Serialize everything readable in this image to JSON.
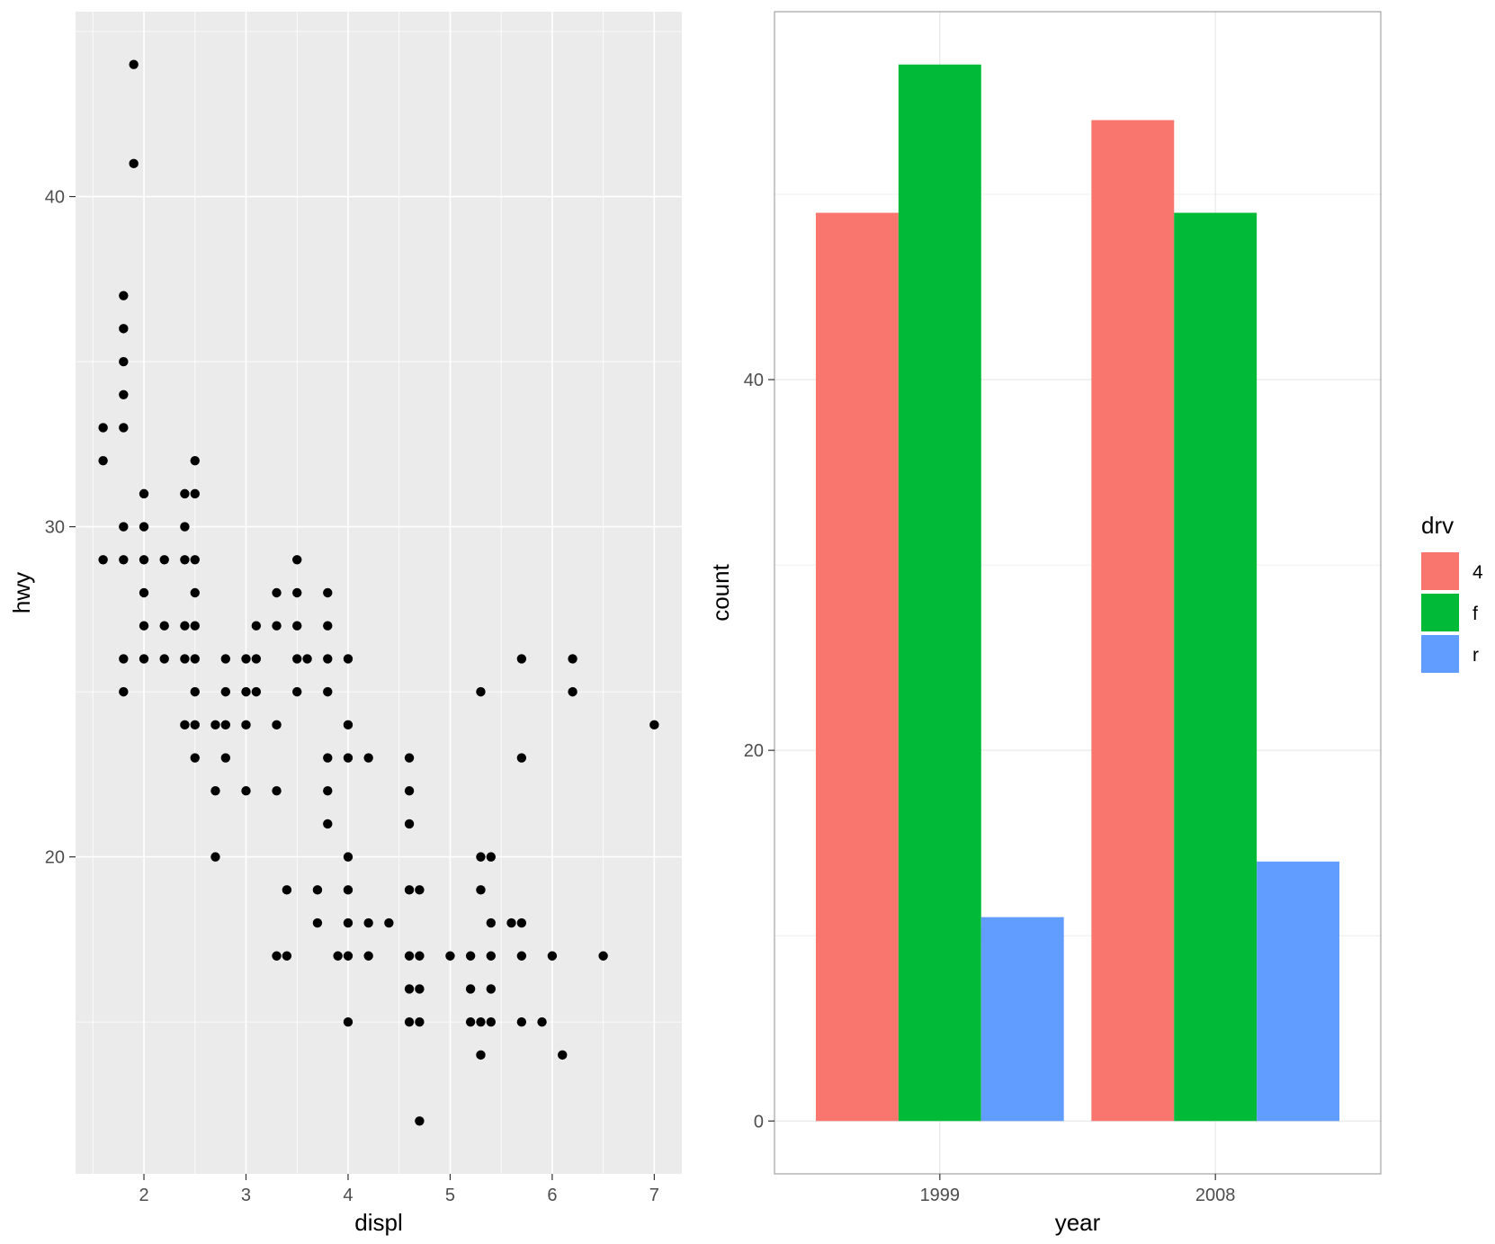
{
  "chart_data": [
    {
      "type": "scatter",
      "title": "",
      "xlabel": "displ",
      "ylabel": "hwy",
      "xlim": [
        1.33,
        7.27
      ],
      "ylim": [
        10.4,
        45.6
      ],
      "xticks": [
        2,
        3,
        4,
        5,
        6,
        7
      ],
      "yticks": [
        20,
        30,
        40
      ],
      "x_tick_labels": [
        "2",
        "3",
        "4",
        "5",
        "6",
        "7"
      ],
      "y_tick_labels": [
        "20",
        "30",
        "40"
      ],
      "grid": true,
      "theme": "grey",
      "points": [
        [
          1.9,
          44
        ],
        [
          1.9,
          41
        ],
        [
          1.8,
          37
        ],
        [
          1.8,
          36
        ],
        [
          1.8,
          35
        ],
        [
          1.8,
          34
        ],
        [
          1.6,
          33
        ],
        [
          1.8,
          33
        ],
        [
          1.6,
          32
        ],
        [
          2.5,
          32
        ],
        [
          2.0,
          31
        ],
        [
          2.4,
          31
        ],
        [
          2.5,
          31
        ],
        [
          1.8,
          30
        ],
        [
          2.0,
          30
        ],
        [
          2.4,
          30
        ],
        [
          1.6,
          29
        ],
        [
          1.8,
          29
        ],
        [
          2.0,
          29
        ],
        [
          2.2,
          29
        ],
        [
          2.4,
          29
        ],
        [
          2.5,
          29
        ],
        [
          3.5,
          29
        ],
        [
          2.0,
          28
        ],
        [
          2.5,
          28
        ],
        [
          3.3,
          28
        ],
        [
          3.5,
          28
        ],
        [
          3.8,
          28
        ],
        [
          2.0,
          27
        ],
        [
          2.2,
          27
        ],
        [
          2.4,
          27
        ],
        [
          2.5,
          27
        ],
        [
          3.1,
          27
        ],
        [
          3.3,
          27
        ],
        [
          3.5,
          27
        ],
        [
          3.8,
          27
        ],
        [
          1.8,
          26
        ],
        [
          2.0,
          26
        ],
        [
          2.2,
          26
        ],
        [
          2.4,
          26
        ],
        [
          2.5,
          26
        ],
        [
          2.8,
          26
        ],
        [
          3.0,
          26
        ],
        [
          3.1,
          26
        ],
        [
          3.5,
          26
        ],
        [
          3.6,
          26
        ],
        [
          3.8,
          26
        ],
        [
          4.0,
          26
        ],
        [
          5.7,
          26
        ],
        [
          6.2,
          26
        ],
        [
          1.8,
          25
        ],
        [
          2.5,
          25
        ],
        [
          2.8,
          25
        ],
        [
          3.0,
          25
        ],
        [
          3.1,
          25
        ],
        [
          3.5,
          25
        ],
        [
          3.8,
          25
        ],
        [
          5.3,
          25
        ],
        [
          6.2,
          25
        ],
        [
          2.4,
          24
        ],
        [
          2.5,
          24
        ],
        [
          2.7,
          24
        ],
        [
          2.8,
          24
        ],
        [
          3.0,
          24
        ],
        [
          3.3,
          24
        ],
        [
          4.0,
          24
        ],
        [
          7.0,
          24
        ],
        [
          2.5,
          23
        ],
        [
          2.8,
          23
        ],
        [
          3.8,
          23
        ],
        [
          4.0,
          23
        ],
        [
          4.2,
          23
        ],
        [
          4.6,
          23
        ],
        [
          5.7,
          23
        ],
        [
          2.7,
          22
        ],
        [
          3.0,
          22
        ],
        [
          3.3,
          22
        ],
        [
          3.8,
          22
        ],
        [
          4.6,
          22
        ],
        [
          3.8,
          21
        ],
        [
          4.6,
          21
        ],
        [
          2.7,
          20
        ],
        [
          4.0,
          20
        ],
        [
          5.3,
          20
        ],
        [
          5.4,
          20
        ],
        [
          3.4,
          19
        ],
        [
          3.7,
          19
        ],
        [
          4.0,
          19
        ],
        [
          4.6,
          19
        ],
        [
          4.7,
          19
        ],
        [
          5.3,
          19
        ],
        [
          3.7,
          18
        ],
        [
          4.0,
          18
        ],
        [
          4.2,
          18
        ],
        [
          4.4,
          18
        ],
        [
          5.4,
          18
        ],
        [
          5.6,
          18
        ],
        [
          5.7,
          18
        ],
        [
          3.3,
          17
        ],
        [
          3.4,
          17
        ],
        [
          3.9,
          17
        ],
        [
          4.0,
          17
        ],
        [
          4.2,
          17
        ],
        [
          4.6,
          17
        ],
        [
          4.7,
          17
        ],
        [
          5.0,
          17
        ],
        [
          5.2,
          17
        ],
        [
          5.4,
          17
        ],
        [
          5.7,
          17
        ],
        [
          6.0,
          17
        ],
        [
          6.5,
          17
        ],
        [
          4.6,
          16
        ],
        [
          4.7,
          16
        ],
        [
          5.2,
          16
        ],
        [
          5.4,
          16
        ],
        [
          4.0,
          15
        ],
        [
          4.6,
          15
        ],
        [
          4.7,
          15
        ],
        [
          5.2,
          15
        ],
        [
          5.3,
          15
        ],
        [
          5.4,
          15
        ],
        [
          5.7,
          15
        ],
        [
          5.9,
          15
        ],
        [
          5.3,
          14
        ],
        [
          6.1,
          14
        ],
        [
          4.7,
          12
        ]
      ]
    },
    {
      "type": "bar",
      "position": "dodge",
      "title": "",
      "xlabel": "year",
      "ylabel": "count",
      "categories": [
        "1999",
        "2008"
      ],
      "yticks": [
        0,
        20,
        40
      ],
      "y_tick_labels": [
        "0",
        "20",
        "40"
      ],
      "ylim": [
        -2.85,
        59.85
      ],
      "grid": true,
      "theme": "bw",
      "series": [
        {
          "name": "4",
          "color": "#F8766D",
          "values": [
            49,
            54
          ]
        },
        {
          "name": "f",
          "color": "#00BA38",
          "values": [
            57,
            49
          ]
        },
        {
          "name": "r",
          "color": "#619CFF",
          "values": [
            11,
            14
          ]
        }
      ],
      "legend": {
        "title": "drv",
        "placement": "right",
        "labels": [
          "4",
          "f",
          "r"
        ]
      }
    }
  ]
}
